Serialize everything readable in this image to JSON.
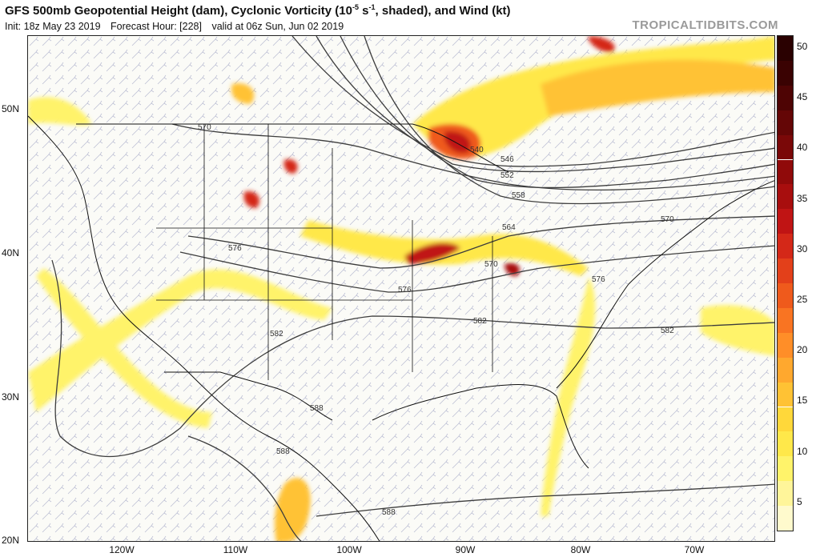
{
  "header": {
    "title_part1": "GFS 500mb Geopotential Height (dam), Cyclonic Vorticity (10",
    "title_exp": "-5",
    "title_unit": " s",
    "title_exp2": "-1",
    "title_part2": ", shaded), and Wind (kt)",
    "init": "Init: 18z May 23 2019",
    "forecast_hour": "Forecast Hour: [228]",
    "valid": "valid at 06z Sun, Jun 02 2019",
    "brand": "TROPICALTIDBITS.COM"
  },
  "axes": {
    "lat_labels": [
      "50N",
      "40N",
      "30N",
      "20N"
    ],
    "lon_labels": [
      "120W",
      "110W",
      "100W",
      "90W",
      "80W",
      "70W"
    ]
  },
  "colorbar": {
    "labels": [
      "50",
      "45",
      "40",
      "35",
      "30",
      "25",
      "20",
      "15",
      "10",
      "5"
    ],
    "colors": [
      "#fffacd",
      "#fff59a",
      "#fff36a",
      "#ffe84a",
      "#ffd83a",
      "#ffc234",
      "#ffa82e",
      "#ff8e28",
      "#f97422",
      "#ef5a1c",
      "#e3401a",
      "#d42818",
      "#c01414",
      "#a80e0e",
      "#900a0a",
      "#7a0808",
      "#640606",
      "#4e0404",
      "#3a0202",
      "#2a0101"
    ]
  },
  "contours": {
    "labels": [
      "570",
      "546",
      "552",
      "558",
      "564",
      "540",
      "570",
      "576",
      "570",
      "576",
      "576",
      "582",
      "582",
      "582",
      "588",
      "588",
      "588"
    ]
  }
}
